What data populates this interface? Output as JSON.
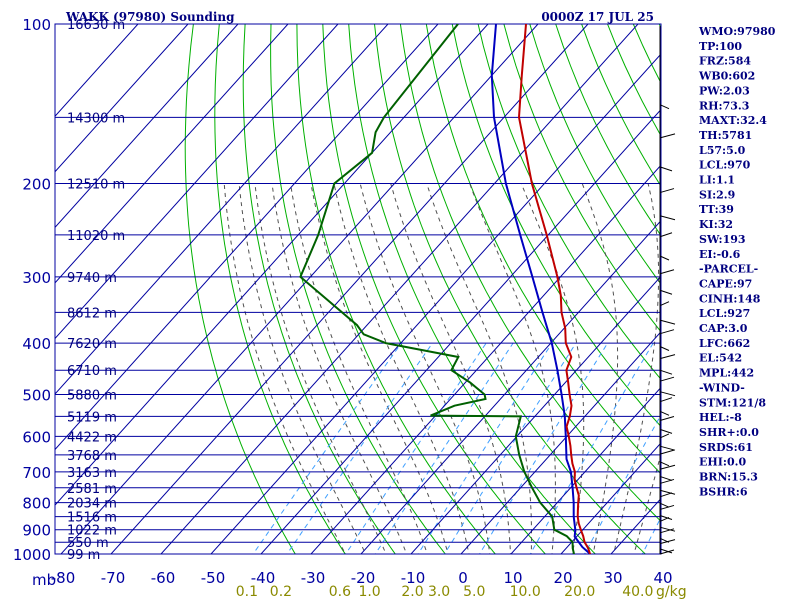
{
  "header": {
    "station": "WAKK (97980) Sounding",
    "datetime": "0000Z 17 JUL 25"
  },
  "axis": {
    "unit_pressure": "mb",
    "unit_mixing": "g/kg"
  },
  "indices": [
    "WMO:97980",
    "TP:100",
    "FRZ:584",
    "WB0:602",
    "PW:2.03",
    "RH:73.3",
    "MAXT:32.4",
    "TH:5781",
    "L57:5.0",
    "LCL:970",
    "LI:1.1",
    "SI:2.9",
    "TT:39",
    "KI:32",
    "SW:193",
    "EI:-0.6",
    "-PARCEL-",
    "CAPE:97",
    "CINH:148",
    "LCL:927",
    "CAP:3.0",
    "LFC:662",
    "EL:542",
    "MPL:442",
    "-WIND-",
    "STM:121/8",
    "HEL:-8",
    "SHR+:0.0",
    "SRDS:61",
    "EHI:0.0",
    "BRN:15.3",
    "BSHR:6"
  ],
  "colors": {
    "grid": "#0000a0",
    "dry_adiabat": "#00b000",
    "moist_adiabat": "#505050",
    "mixing_ratio": "#40a0ff",
    "temperature": "#c00000",
    "dewpoint": "#006000",
    "parcel": "#0000c0",
    "wind": "#000000",
    "text": "#000080",
    "mixing_label": "#8a8a00"
  },
  "chart_data": {
    "type": "skew-t",
    "pressure_axis": {
      "ticks": [
        100,
        200,
        300,
        400,
        500,
        600,
        700,
        800,
        900,
        1000
      ],
      "range": [
        100,
        1000
      ]
    },
    "temperature_axis": {
      "ticks": [
        -80,
        -70,
        -60,
        -50,
        -40,
        -30,
        -20,
        -10,
        0,
        10,
        20,
        30,
        40
      ],
      "range": [
        -80,
        40
      ]
    },
    "mixing_ratio_labels": [
      "0.1",
      "0.2",
      "0.6",
      "1.0",
      "2.0",
      "3.0",
      "5.0",
      "10.0",
      "20.0",
      "40.0"
    ],
    "height_labels": [
      {
        "p": 100,
        "label": "16630 m"
      },
      {
        "p": 150,
        "label": "14300 m"
      },
      {
        "p": 200,
        "label": "12510 m"
      },
      {
        "p": 250,
        "label": "11020 m"
      },
      {
        "p": 300,
        "label": "9740 m"
      },
      {
        "p": 350,
        "label": "8612 m"
      },
      {
        "p": 400,
        "label": "7620 m"
      },
      {
        "p": 450,
        "label": "6710 m"
      },
      {
        "p": 500,
        "label": "5880 m"
      },
      {
        "p": 550,
        "label": "5119 m"
      },
      {
        "p": 600,
        "label": "4422 m"
      },
      {
        "p": 650,
        "label": "3768 m"
      },
      {
        "p": 700,
        "label": "3163 m"
      },
      {
        "p": 750,
        "label": "2581 m"
      },
      {
        "p": 800,
        "label": "2034 m"
      },
      {
        "p": 850,
        "label": "1516 m"
      },
      {
        "p": 900,
        "label": "1022 m"
      },
      {
        "p": 950,
        "label": "550 m"
      },
      {
        "p": 1000,
        "label": "99 m"
      }
    ],
    "temperature": [
      [
        1008,
        26.6
      ],
      [
        1000,
        25.8
      ],
      [
        975,
        24.4
      ],
      [
        950,
        22.6
      ],
      [
        925,
        21.2
      ],
      [
        900,
        19.6
      ],
      [
        875,
        18.0
      ],
      [
        850,
        16.6
      ],
      [
        825,
        15.4
      ],
      [
        800,
        14.2
      ],
      [
        775,
        13.0
      ],
      [
        750,
        11.2
      ],
      [
        725,
        9.4
      ],
      [
        700,
        8.0
      ],
      [
        675,
        6.0
      ],
      [
        650,
        4.2
      ],
      [
        625,
        2.4
      ],
      [
        600,
        0.4
      ],
      [
        575,
        -1.8
      ],
      [
        550,
        -3.0
      ],
      [
        525,
        -4.6
      ],
      [
        500,
        -7.0
      ],
      [
        475,
        -9.4
      ],
      [
        450,
        -12.0
      ],
      [
        425,
        -13.4
      ],
      [
        400,
        -17.0
      ],
      [
        375,
        -19.8
      ],
      [
        350,
        -23.4
      ],
      [
        325,
        -26.6
      ],
      [
        300,
        -30.6
      ],
      [
        250,
        -40.3
      ],
      [
        200,
        -52.5
      ],
      [
        150,
        -67.0
      ],
      [
        125,
        -74.0
      ],
      [
        100,
        -82.4
      ]
    ],
    "dewpoint": [
      [
        1008,
        22.6
      ],
      [
        1000,
        22.6
      ],
      [
        975,
        21.3
      ],
      [
        950,
        20.2
      ],
      [
        925,
        17.9
      ],
      [
        900,
        14.3
      ],
      [
        850,
        11.5
      ],
      [
        800,
        6.6
      ],
      [
        750,
        2.3
      ],
      [
        700,
        -2.1
      ],
      [
        650,
        -6.2
      ],
      [
        600,
        -10.2
      ],
      [
        550,
        -12.8
      ],
      [
        548,
        -31.0
      ],
      [
        525,
        -28.0
      ],
      [
        510,
        -23.0
      ],
      [
        500,
        -24.0
      ],
      [
        475,
        -29.0
      ],
      [
        450,
        -35.0
      ],
      [
        425,
        -36.0
      ],
      [
        400,
        -53.0
      ],
      [
        385,
        -59.0
      ],
      [
        370,
        -62.0
      ],
      [
        300,
        -82.0
      ],
      [
        250,
        -86.0
      ],
      [
        200,
        -92.0
      ],
      [
        175,
        -90.0
      ],
      [
        160,
        -93.0
      ],
      [
        150,
        -94.0
      ],
      [
        100,
        -96.0
      ]
    ],
    "parcel": [
      [
        1008,
        26.6
      ],
      [
        970,
        23.0
      ],
      [
        927,
        19.6
      ],
      [
        900,
        18.5
      ],
      [
        850,
        15.8
      ],
      [
        800,
        13.3
      ],
      [
        750,
        10.4
      ],
      [
        700,
        7.2
      ],
      [
        662,
        4.0
      ],
      [
        600,
        -0.2
      ],
      [
        550,
        -4.0
      ],
      [
        500,
        -8.6
      ],
      [
        450,
        -13.8
      ],
      [
        400,
        -19.8
      ],
      [
        350,
        -27.2
      ],
      [
        300,
        -35.6
      ],
      [
        250,
        -45.6
      ],
      [
        200,
        -57.7
      ],
      [
        150,
        -72.0
      ],
      [
        125,
        -80.0
      ],
      [
        100,
        -88.4
      ]
    ]
  }
}
